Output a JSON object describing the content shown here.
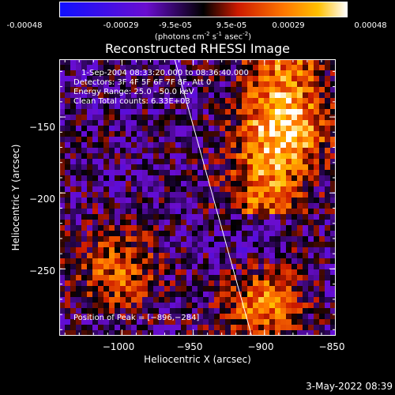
{
  "colorbar": {
    "ticks": [
      "-0.00048",
      "-0.00029",
      "-9.5e-05",
      "9.5e-05",
      "0.00029",
      "0.00048"
    ],
    "units_base": "(photons cm",
    "units_sup1": "-2",
    "units_mid1": " s",
    "units_sup2": "-1",
    "units_mid2": " asec",
    "units_sup3": "-2",
    "units_end": ")",
    "colors": [
      "#1010ff",
      "#6a0dd0",
      "#000000",
      "#cc1a00",
      "#ff7700",
      "#ffc000",
      "#ffffff"
    ]
  },
  "chart_data": {
    "type": "heatmap",
    "title": "Reconstructed RHESSI Image",
    "xlabel": "Heliocentric X (arcsec)",
    "ylabel": "Heliocentric Y (arcsec)",
    "xlim": [
      -1044,
      -850
    ],
    "ylim": [
      -294,
      -112
    ],
    "xticks": [
      -1000,
      -950,
      -900,
      -850
    ],
    "xtick_labels": [
      "−1000",
      "−950",
      "−900",
      "−850"
    ],
    "yticks": [
      -250,
      -200,
      -150
    ],
    "ytick_labels": [
      "−250",
      "−200",
      "−150"
    ],
    "colorscale_range": [
      -0.00048,
      0.00048
    ],
    "limb_line": [
      [
        -963,
        -112
      ],
      [
        -909,
        -294
      ]
    ],
    "peak_position": [
      -896,
      -284
    ]
  },
  "info": {
    "line1": "1-Sep-2004 08:33:20.000 to 08:36:40.000",
    "line2": "Detectors: 3F 4F 5F 6F 7F 8F, Att 0",
    "line3": "Energy Range: 25.0 - 50.0 keV",
    "line4": "Clean    Total counts: 6.33E+03"
  },
  "peak_text": "Position of Peak = [−896,−284]",
  "timestamp": "3-May-2022 08:39"
}
